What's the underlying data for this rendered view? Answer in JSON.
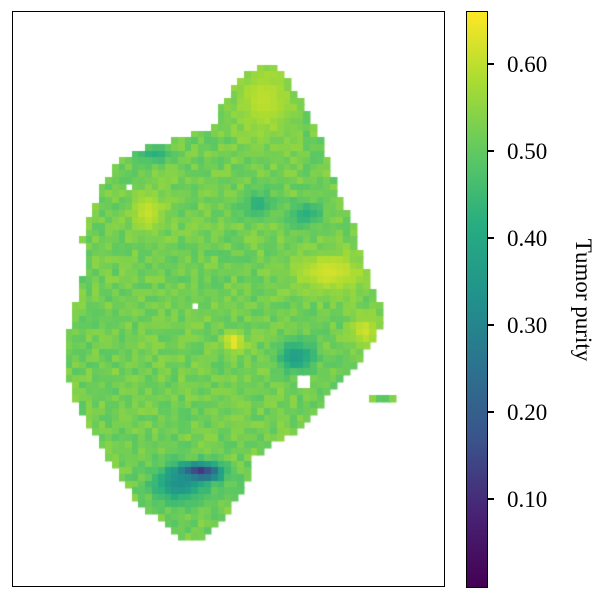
{
  "chart_data": {
    "type": "heatmap",
    "title": "",
    "xlabel": "",
    "ylabel": "",
    "colormap": "viridis",
    "colorbar": {
      "label": "Tumor purity",
      "range": [
        0.0,
        0.66
      ],
      "ticks": [
        {
          "value": 0.1,
          "label": "0.10"
        },
        {
          "value": 0.2,
          "label": "0.20"
        },
        {
          "value": 0.3,
          "label": "0.30"
        },
        {
          "value": 0.4,
          "label": "0.40"
        },
        {
          "value": 0.5,
          "label": "0.50"
        },
        {
          "value": 0.6,
          "label": "0.60"
        }
      ]
    },
    "grid": false,
    "axes_ticks_visible": false,
    "typical_value": 0.52,
    "regions": [
      {
        "description": "top protrusion, high purity",
        "value": 0.6
      },
      {
        "description": "upper-left focus",
        "value": 0.61
      },
      {
        "description": "central bright spot",
        "value": 0.65
      },
      {
        "description": "right-side focus",
        "value": 0.62
      },
      {
        "description": "right-center low patch",
        "value": 0.37
      },
      {
        "description": "upper-center low patches",
        "value": 0.42
      },
      {
        "description": "bottom band, lowest purity",
        "value": 0.03
      },
      {
        "description": "bottom band margin",
        "value": 0.33
      }
    ]
  }
}
